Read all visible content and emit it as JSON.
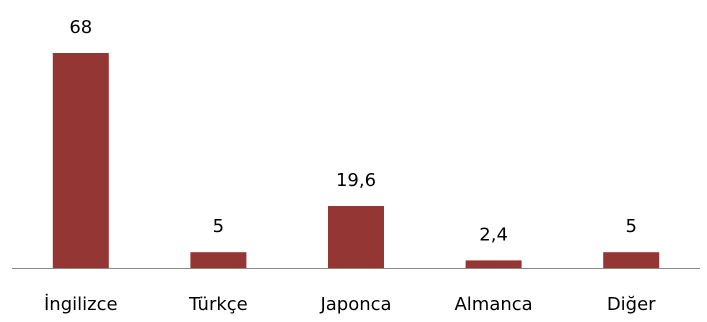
{
  "chart_data": {
    "type": "bar",
    "categories": [
      "İngilizce",
      "Türkçe",
      "Japonca",
      "Almanca",
      "Diğer"
    ],
    "values": [
      68,
      5,
      19.6,
      2.4,
      5
    ],
    "data_labels": [
      "68",
      "5",
      "19,6",
      "2,4",
      "5"
    ],
    "title": "",
    "xlabel": "",
    "ylabel": "",
    "ylim": [
      0,
      68
    ],
    "grid": false,
    "legend": "none",
    "bar_color": "#943634",
    "axis_color": "#898989"
  }
}
